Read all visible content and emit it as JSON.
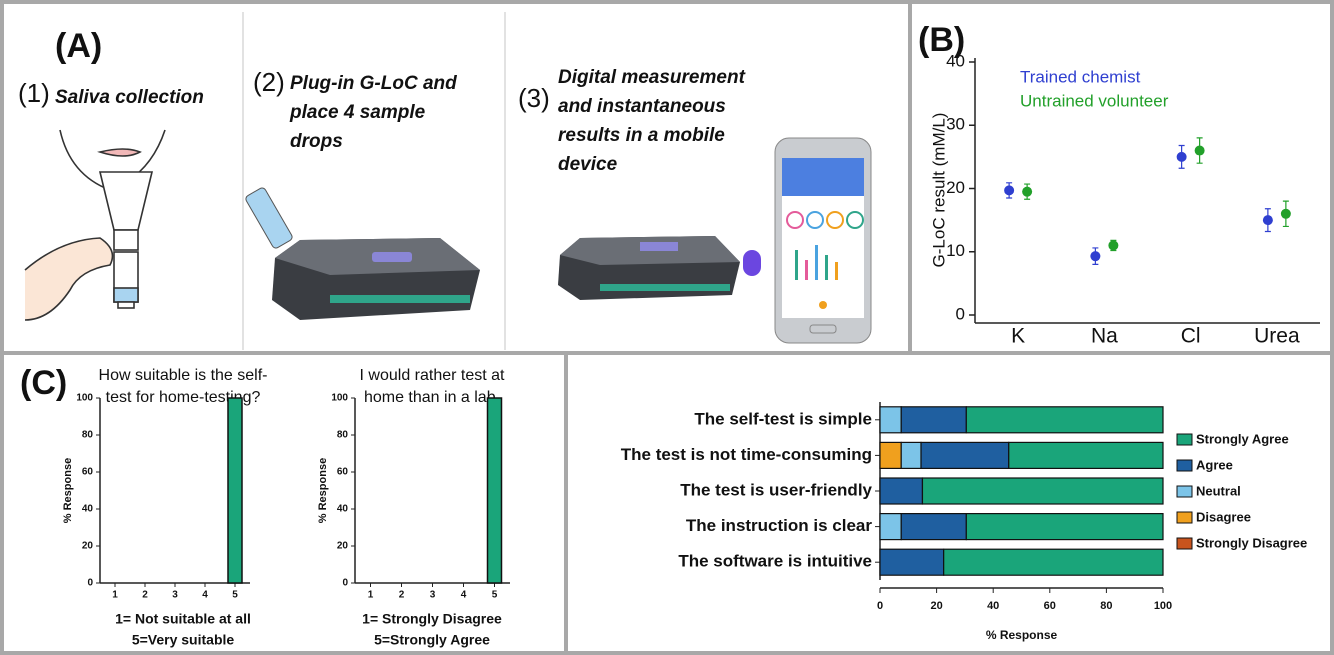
{
  "panels": {
    "a": {
      "label": "(A)",
      "steps": [
        {
          "number": "(1)",
          "lines": [
            "Saliva collection"
          ]
        },
        {
          "number": "(2)",
          "lines": [
            "Plug-in G-LoC and",
            "place 4 sample",
            "drops"
          ]
        },
        {
          "number": "(3)",
          "lines": [
            "Digital measurement",
            "and instantaneous",
            "results in a mobile",
            "device"
          ]
        }
      ]
    },
    "b_label": "(B)",
    "c_label": "(C)"
  },
  "chart_data": [
    {
      "type": "errorbar",
      "ylabel": "G-LoC result (mM/L)",
      "categories": [
        "K",
        "Na",
        "Cl",
        "Urea"
      ],
      "series": [
        {
          "name": "Trained chemist",
          "color": "#2f3fd0",
          "values": [
            19.7,
            9.3,
            25,
            15
          ],
          "errors": [
            1.2,
            1.3,
            1.8,
            1.8
          ]
        },
        {
          "name": "Untrained volunteer",
          "color": "#22a02a",
          "values": [
            19.5,
            11,
            26,
            16
          ],
          "errors": [
            1.2,
            0.8,
            2,
            2
          ]
        }
      ],
      "ylim": [
        0,
        40
      ],
      "yticks": [
        0,
        10,
        20,
        30,
        40
      ]
    },
    {
      "type": "bar",
      "title": [
        "How suitable is the self-",
        "test for home-testing?"
      ],
      "ylabel": "% Response",
      "xlabel": [
        "1= Not suitable at all",
        "5=Very suitable"
      ],
      "categories": [
        "1",
        "2",
        "3",
        "4",
        "5"
      ],
      "values": [
        0,
        0,
        0,
        0,
        100
      ],
      "color": "#1aa57a",
      "ylim": [
        0,
        100
      ],
      "yticks": [
        0,
        20,
        40,
        60,
        80,
        100
      ]
    },
    {
      "type": "bar",
      "title": [
        "I would rather test at",
        "home than in a lab."
      ],
      "ylabel": "% Response",
      "xlabel": [
        "1= Strongly Disagree",
        "5=Strongly Agree"
      ],
      "categories": [
        "1",
        "2",
        "3",
        "4",
        "5"
      ],
      "values": [
        0,
        0,
        0,
        0,
        100
      ],
      "color": "#1aa57a",
      "ylim": [
        0,
        100
      ],
      "yticks": [
        0,
        20,
        40,
        60,
        80,
        100
      ]
    },
    {
      "type": "stacked-barh",
      "xlabel": "% Response",
      "categories": [
        "The self-test is simple",
        "The test is not time-consuming",
        "The test is user-friendly",
        "The instruction is clear",
        "The software is intuitive"
      ],
      "series": [
        {
          "name": "Strongly Disagree",
          "color": "#c8541e",
          "values": [
            0,
            0,
            0,
            0,
            0
          ]
        },
        {
          "name": "Disagree",
          "color": "#f0a01e",
          "values": [
            0,
            7.5,
            0,
            0,
            0
          ]
        },
        {
          "name": "Neutral",
          "color": "#7cc4e8",
          "values": [
            7.5,
            7,
            0,
            7.5,
            0
          ]
        },
        {
          "name": "Agree",
          "color": "#1f5fa0",
          "values": [
            23,
            31,
            15,
            23,
            22.5
          ]
        },
        {
          "name": "Strongly Agree",
          "color": "#1aa57a",
          "values": [
            69.5,
            54.5,
            85,
            69.5,
            77.5
          ]
        }
      ],
      "xlim": [
        0,
        100
      ],
      "xticks": [
        0,
        20,
        40,
        60,
        80,
        100
      ]
    }
  ]
}
